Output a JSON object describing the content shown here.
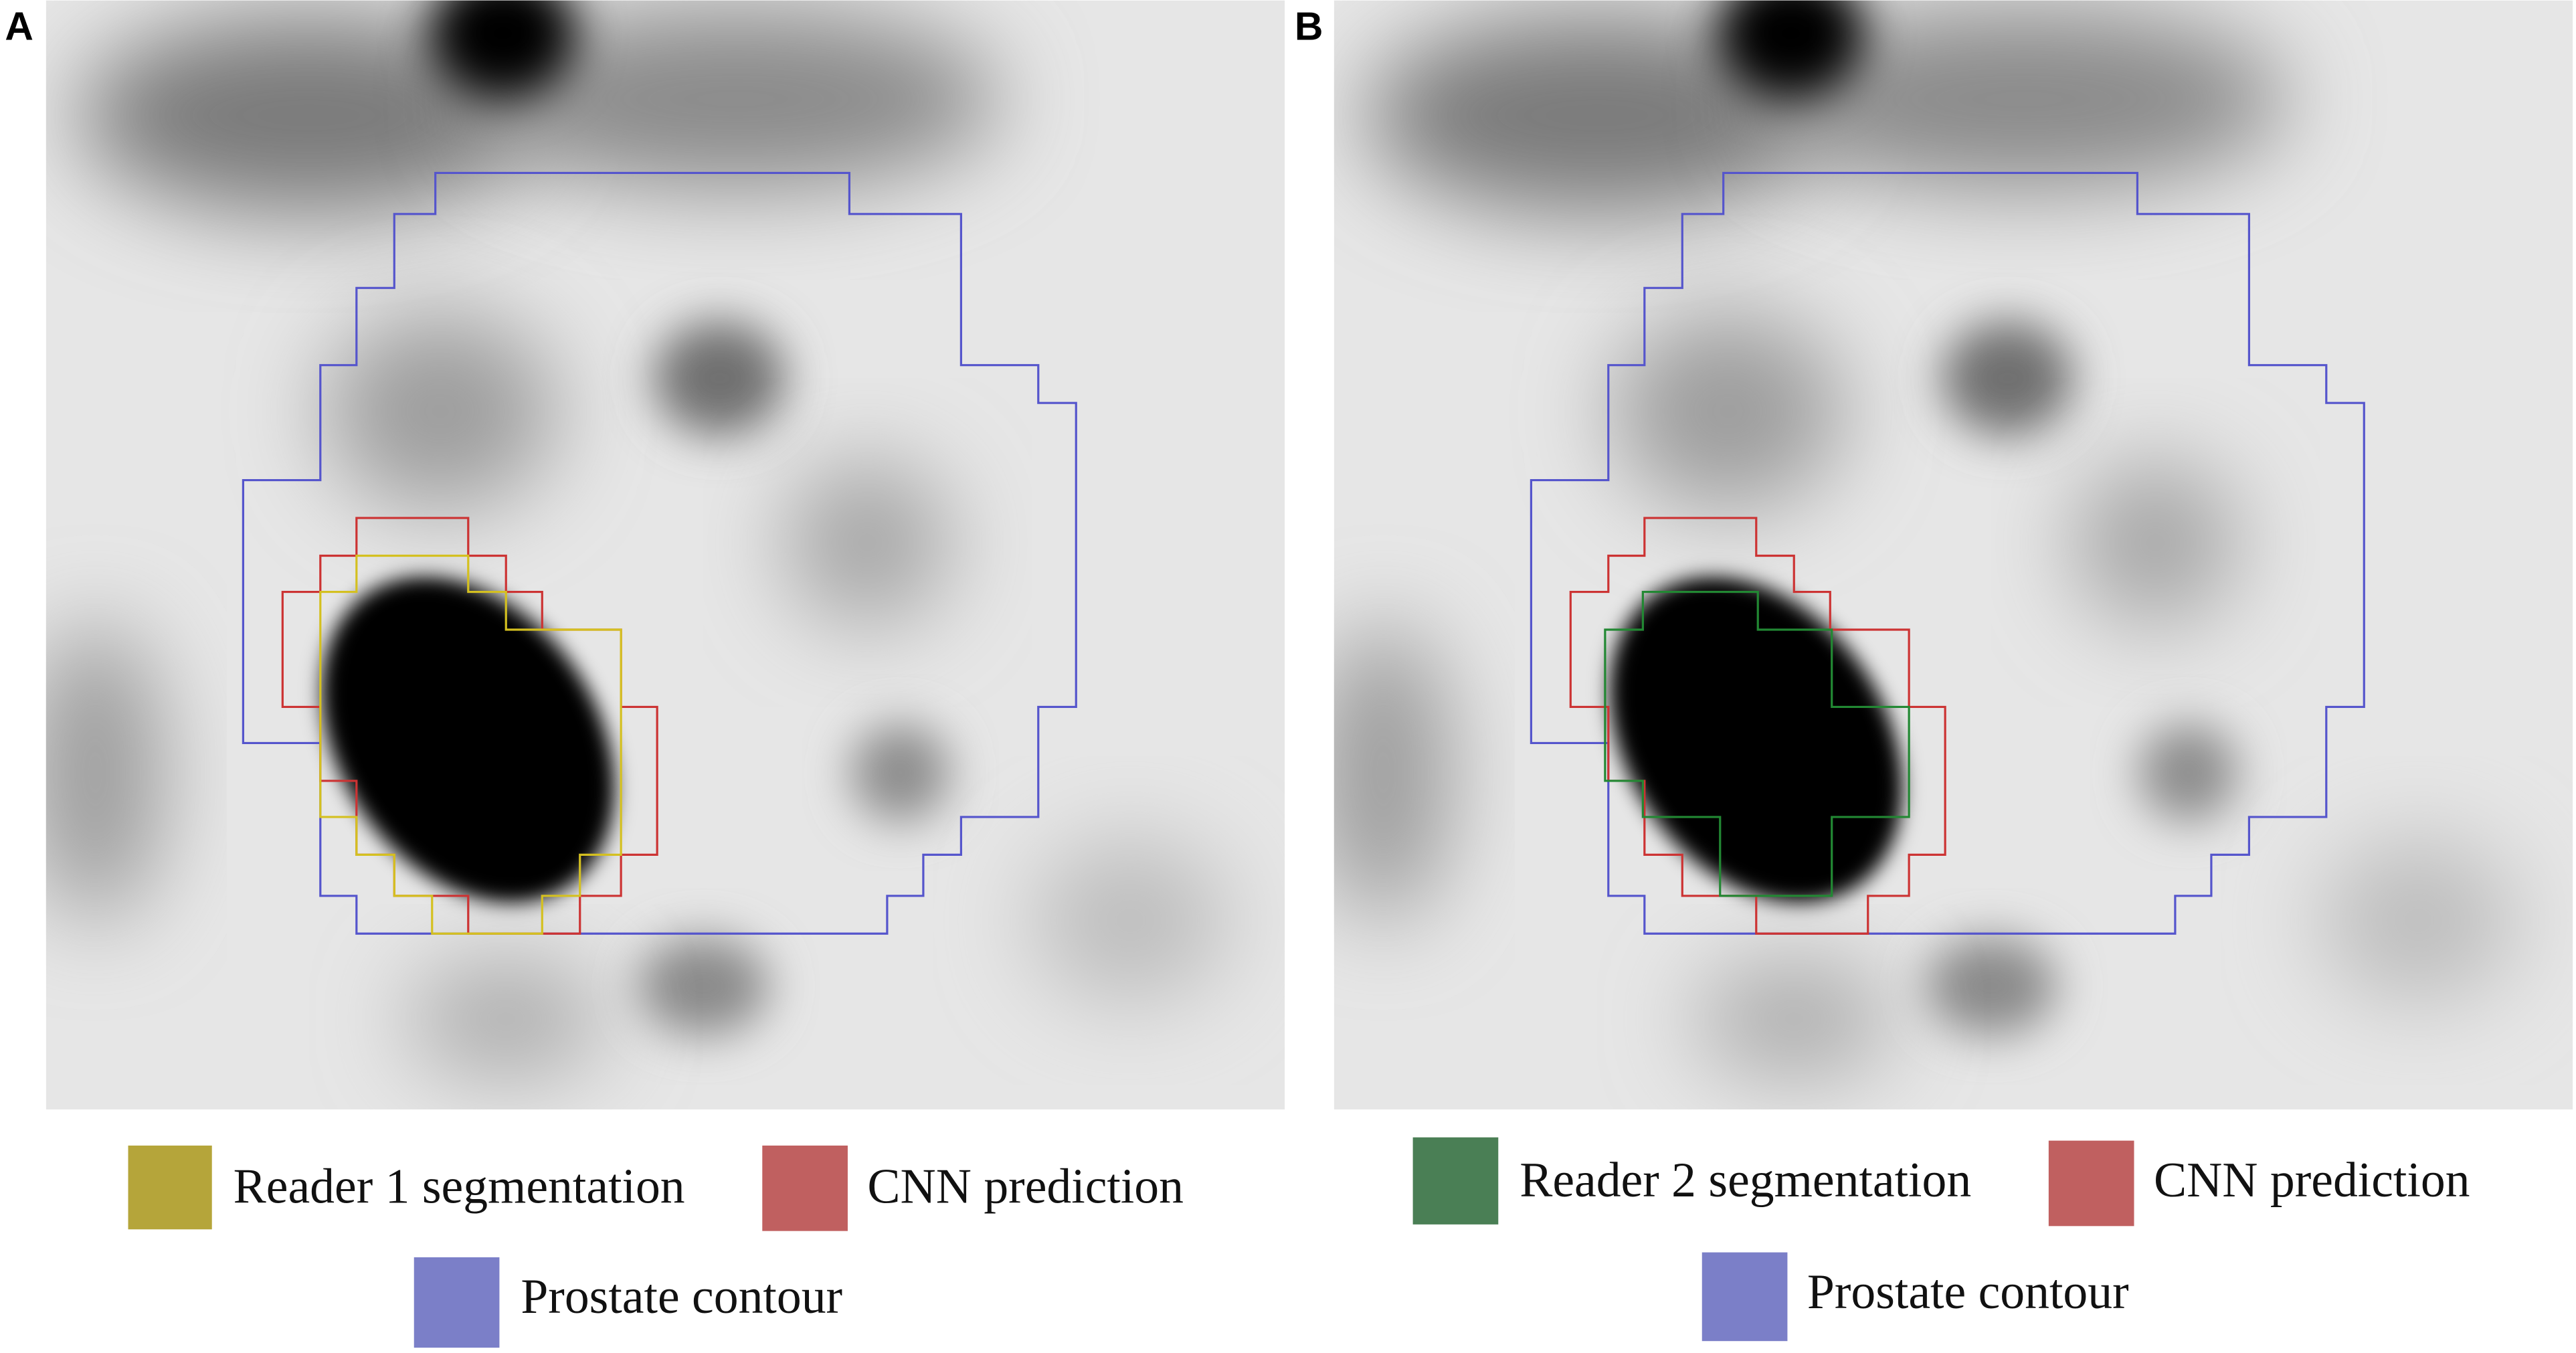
{
  "panels": [
    {
      "label": "A",
      "legend": [
        "Reader 1 segmentation",
        "CNN prediction",
        "Prostate contour"
      ]
    },
    {
      "label": "B",
      "legend": [
        "Reader 2 segmentation",
        "CNN prediction",
        "Prostate contour"
      ]
    }
  ]
}
